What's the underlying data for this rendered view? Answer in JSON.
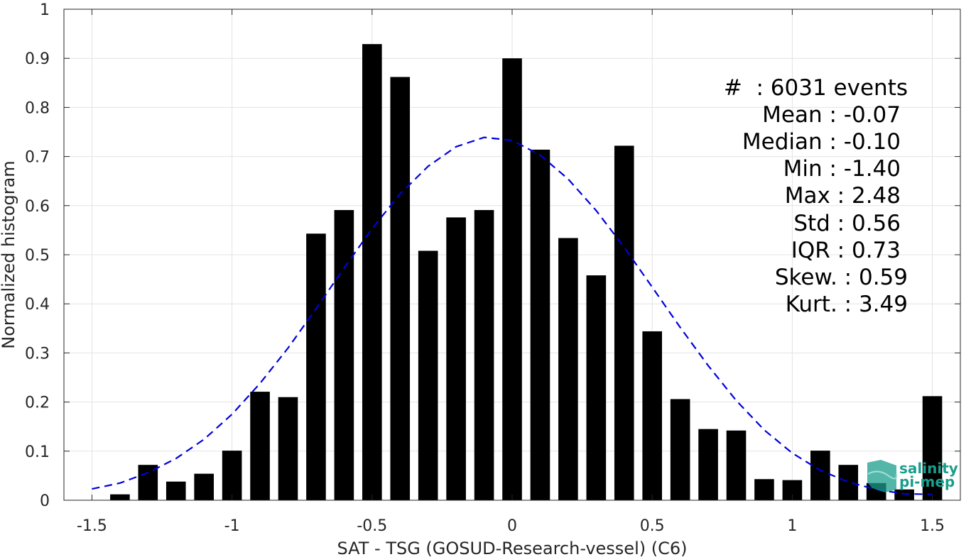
{
  "chart_data": {
    "type": "bar",
    "xlabel": "SAT - TSG (GOSUD-Research-vessel) (C6)",
    "ylabel": "Normalized histogram",
    "xlim": [
      -1.6,
      1.6
    ],
    "ylim": [
      0,
      1
    ],
    "grid": true,
    "x_ticks": [
      "-1.5",
      "-1",
      "-0.5",
      "0",
      "0.5",
      "1",
      "1.5"
    ],
    "x_tick_values": [
      -1.5,
      -1,
      -0.5,
      0,
      0.5,
      1,
      1.5
    ],
    "y_ticks": [
      "0",
      "0.1",
      "0.2",
      "0.3",
      "0.4",
      "0.5",
      "0.6",
      "0.7",
      "0.8",
      "0.9",
      "1"
    ],
    "y_tick_values": [
      0,
      0.1,
      0.2,
      0.3,
      0.4,
      0.5,
      0.6,
      0.7,
      0.8,
      0.9,
      1
    ],
    "bin_width": 0.07,
    "bar_color": "#000000",
    "bins": [
      {
        "x": -1.4,
        "value": 0.012
      },
      {
        "x": -1.3,
        "value": 0.072
      },
      {
        "x": -1.2,
        "value": 0.038
      },
      {
        "x": -1.1,
        "value": 0.054
      },
      {
        "x": -1.0,
        "value": 0.101
      },
      {
        "x": -0.9,
        "value": 0.221
      },
      {
        "x": -0.8,
        "value": 0.21
      },
      {
        "x": -0.7,
        "value": 0.543
      },
      {
        "x": -0.6,
        "value": 0.591
      },
      {
        "x": -0.5,
        "value": 0.929
      },
      {
        "x": -0.4,
        "value": 0.862
      },
      {
        "x": -0.3,
        "value": 0.508
      },
      {
        "x": -0.2,
        "value": 0.576
      },
      {
        "x": -0.1,
        "value": 0.591
      },
      {
        "x": 0.0,
        "value": 0.9
      },
      {
        "x": 0.1,
        "value": 0.714
      },
      {
        "x": 0.2,
        "value": 0.534
      },
      {
        "x": 0.3,
        "value": 0.458
      },
      {
        "x": 0.4,
        "value": 0.722
      },
      {
        "x": 0.5,
        "value": 0.344
      },
      {
        "x": 0.6,
        "value": 0.206
      },
      {
        "x": 0.7,
        "value": 0.145
      },
      {
        "x": 0.8,
        "value": 0.142
      },
      {
        "x": 0.9,
        "value": 0.043
      },
      {
        "x": 1.0,
        "value": 0.041
      },
      {
        "x": 1.1,
        "value": 0.101
      },
      {
        "x": 1.2,
        "value": 0.072
      },
      {
        "x": 1.3,
        "value": 0.035
      },
      {
        "x": 1.4,
        "value": 0.022
      },
      {
        "x": 1.5,
        "value": 0.212
      }
    ],
    "fit_curve": {
      "style": "dashed",
      "color": "#0000dd",
      "x": [
        -1.5,
        -1.4,
        -1.3,
        -1.2,
        -1.1,
        -1.0,
        -0.9,
        -0.8,
        -0.7,
        -0.6,
        -0.5,
        -0.4,
        -0.3,
        -0.2,
        -0.1,
        0.0,
        0.1,
        0.2,
        0.3,
        0.4,
        0.5,
        0.6,
        0.7,
        0.8,
        0.9,
        1.0,
        1.1,
        1.2,
        1.3,
        1.4,
        1.5
      ],
      "y": [
        0.023,
        0.035,
        0.056,
        0.085,
        0.124,
        0.175,
        0.238,
        0.31,
        0.39,
        0.473,
        0.553,
        0.624,
        0.68,
        0.72,
        0.739,
        0.733,
        0.703,
        0.654,
        0.59,
        0.515,
        0.434,
        0.352,
        0.274,
        0.203,
        0.143,
        0.096,
        0.061,
        0.037,
        0.022,
        0.013,
        0.012
      ]
    },
    "stats": {
      "events": "#  : 6031 events",
      "mean": "Mean : -0.07",
      "median": "Median : -0.10",
      "min": "Min : -1.40",
      "max": "Max : 2.48",
      "std": "Std : 0.56",
      "iqr": "IQR : 0.73",
      "skew": "Skew. : 0.59",
      "kurt": "Kurt. : 3.49"
    }
  },
  "logo": {
    "line1": "salinity",
    "line2": "pi-mep",
    "color": "#1a9e8c"
  }
}
